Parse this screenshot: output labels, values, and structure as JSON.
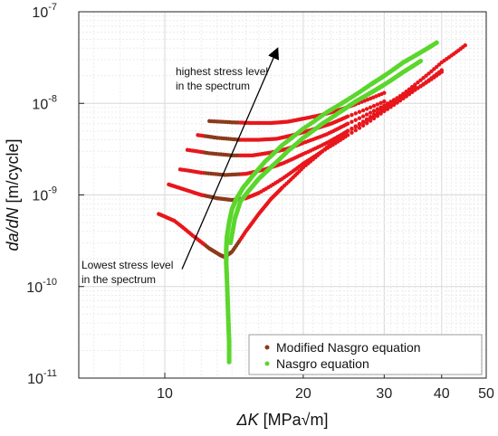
{
  "chart_data": {
    "type": "scatter",
    "x_scale": "log",
    "y_scale": "log",
    "xlim": [
      6.5,
      50
    ],
    "ylim": [
      1e-11,
      1e-07
    ],
    "grid": true,
    "legend_position": "bottom-right",
    "xlabel": {
      "sym": "ΔK",
      "units": "[MPa√m]"
    },
    "ylabel": {
      "sym": "da/dN",
      "units": "[m/cycle]"
    },
    "x_ticks": [
      {
        "v": 10,
        "label": "10"
      },
      {
        "v": 20,
        "label": "20"
      },
      {
        "v": 30,
        "label": "30"
      },
      {
        "v": 40,
        "label": "40"
      },
      {
        "v": 50,
        "label": "50"
      }
    ],
    "y_ticks": [
      {
        "v": 1e-11,
        "base": "10",
        "exp": "-11"
      },
      {
        "v": 1e-10,
        "base": "10",
        "exp": "-10"
      },
      {
        "v": 1e-09,
        "base": "10",
        "exp": "-9"
      },
      {
        "v": 1e-08,
        "base": "10",
        "exp": "-8"
      },
      {
        "v": 1e-07,
        "base": "10",
        "exp": "-7"
      }
    ],
    "annotations": {
      "top": [
        "highest stress level",
        "in the spectrum"
      ],
      "bottom": [
        "Lowest stress level",
        "in the spectrum"
      ],
      "arrow": {
        "from": [
          10.9,
          1.55e-10
        ],
        "to": [
          17.6,
          4e-08
        ]
      }
    },
    "series": [
      {
        "name": "Modified Nasgro equation",
        "color": "#e8161c",
        "color_alt": "#8b3a1a",
        "marker_size": 2.2,
        "curves": [
          {
            "x": [
              9.7,
              10.5,
              11.5,
              12.5,
              13.2,
              13.5,
              14.0,
              15.0,
              16.0,
              17.0,
              18.0,
              20.0,
              22.5,
              25.0,
              30.0,
              35.0,
              40.0,
              45.0
            ],
            "y": [
              6.2e-10,
              5.2e-10,
              3.6e-10,
              2.6e-10,
              2.2e-10,
              2.1e-10,
              2.4e-10,
              4e-10,
              6.2e-10,
              9e-10,
              1.2e-09,
              2e-09,
              3.3e-09,
              5e-09,
              9e-09,
              1.6e-08,
              2.8e-08,
              4.3e-08
            ]
          },
          {
            "x": [
              10.2,
              11.0,
              12.0,
              13.0,
              14.0,
              15.0,
              16.0,
              18.0,
              20.0,
              22.0,
              25.0,
              30.0,
              35.0,
              40.0
            ],
            "y": [
              1.3e-09,
              1.15e-09,
              1e-09,
              9.2e-10,
              8.8e-10,
              9.2e-10,
              1.05e-09,
              1.5e-09,
              2.2e-09,
              3e-09,
              4.5e-09,
              8.2e-09,
              1.4e-08,
              2.3e-08
            ]
          },
          {
            "x": [
              10.8,
              12.0,
              13.5,
              15.0,
              16.5,
              18.0,
              20.0,
              22.5,
              25.0,
              30.0,
              35.0,
              40.0
            ],
            "y": [
              1.9e-09,
              1.75e-09,
              1.65e-09,
              1.7e-09,
              1.9e-09,
              2.2e-09,
              2.8e-09,
              3.7e-09,
              5e-09,
              8.5e-09,
              1.4e-08,
              2.2e-08
            ]
          },
          {
            "x": [
              11.2,
              12.5,
              14.0,
              15.5,
              17.0,
              18.5,
              20.0,
              22.5,
              25.0,
              30.0,
              35.0
            ],
            "y": [
              3.1e-09,
              2.85e-09,
              2.7e-09,
              2.7e-09,
              2.9e-09,
              3.2e-09,
              3.7e-09,
              4.6e-09,
              6e-09,
              9.5e-09,
              1.5e-08
            ]
          },
          {
            "x": [
              11.8,
              13.0,
              14.5,
              16.0,
              17.5,
              19.0,
              21.0,
              23.0,
              25.0,
              30.0
            ],
            "y": [
              4.5e-09,
              4.2e-09,
              4e-09,
              4e-09,
              4.1e-09,
              4.5e-09,
              5.2e-09,
              6e-09,
              7.2e-09,
              1.05e-08
            ]
          },
          {
            "x": [
              12.5,
              14.0,
              15.5,
              17.0,
              18.5,
              20.0,
              22.0,
              24.0,
              26.0,
              30.0
            ],
            "y": [
              6.4e-09,
              6.2e-09,
              6.1e-09,
              6.1e-09,
              6.3e-09,
              6.8e-09,
              7.5e-09,
              8.5e-09,
              9.8e-09,
              1.3e-08
            ]
          }
        ]
      },
      {
        "name": "Nasgro equation",
        "color": "#5bd62c",
        "marker_size": 2.6,
        "curves": [
          {
            "x": [
              13.8,
              13.8,
              13.75,
              13.7,
              13.65,
              13.6,
              13.6,
              13.65,
              13.8,
              14.0,
              14.3,
              14.8,
              15.5,
              16.5,
              18.0,
              20.0,
              22.5,
              25.0,
              28.0,
              30.0,
              33.0,
              36.0,
              39.0
            ],
            "y": [
              1.5e-11,
              2.5e-11,
              4e-11,
              7e-11,
              1.2e-10,
              1.8e-10,
              2.5e-10,
              3.5e-10,
              5e-10,
              7e-10,
              9e-10,
              1.2e-09,
              1.6e-09,
              2.3e-09,
              3.5e-09,
              5.3e-09,
              8e-09,
              1.1e-08,
              1.6e-08,
              2e-08,
              2.8e-08,
              3.6e-08,
              4.6e-08
            ]
          },
          {
            "x": [
              13.9,
              14.2,
              14.6,
              15.2,
              16.0,
              17.0,
              18.5,
              20.0,
              22.0,
              24.0,
              26.0,
              28.0,
              30.0,
              33.0,
              36.0
            ],
            "y": [
              3e-10,
              5.5e-10,
              8.5e-10,
              1.1e-09,
              1.5e-09,
              2e-09,
              3e-09,
              4.2e-09,
              6e-09,
              8e-09,
              1.05e-08,
              1.3e-08,
              1.6e-08,
              2.2e-08,
              2.9e-08
            ]
          }
        ]
      }
    ]
  }
}
